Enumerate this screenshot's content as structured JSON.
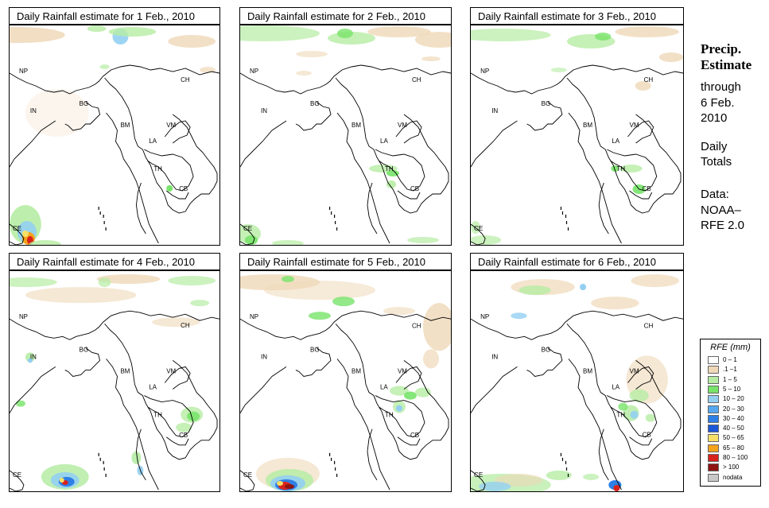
{
  "panels": [
    {
      "title": "Daily Rainfall estimate for  1 Feb., 2010"
    },
    {
      "title": "Daily Rainfall estimate for  2 Feb., 2010"
    },
    {
      "title": "Daily Rainfall estimate for  3 Feb., 2010"
    },
    {
      "title": "Daily Rainfall estimate for  4 Feb., 2010"
    },
    {
      "title": "Daily Rainfall estimate for  5 Feb., 2010"
    },
    {
      "title": "Daily Rainfall estimate for  6 Feb., 2010"
    }
  ],
  "country_labels": [
    "NP",
    "CH",
    "IN",
    "BG",
    "BM",
    "VM",
    "LA",
    "TH",
    "CB",
    "CE"
  ],
  "sidebar": {
    "heading_line1": "Precip.",
    "heading_line2": "Estimate",
    "through": "through",
    "date_line1": "6 Feb.",
    "date_line2": "2010",
    "daily_line1": "Daily",
    "daily_line2": "Totals",
    "data_line1": "Data:",
    "data_line2": "NOAA–",
    "data_line3": "RFE 2.0"
  },
  "legend": {
    "title": "RFE (mm)",
    "items": [
      {
        "label": "0 – 1",
        "color": "#ffffff"
      },
      {
        "label": ".1 –1",
        "color": "#efd8b8"
      },
      {
        "label": "1 – 5",
        "color": "#b6eca4"
      },
      {
        "label": "5 – 10",
        "color": "#78e36a"
      },
      {
        "label": "10 – 20",
        "color": "#94cff2"
      },
      {
        "label": "20 – 30",
        "color": "#55a8f0"
      },
      {
        "label": "30 – 40",
        "color": "#2e7fe6"
      },
      {
        "label": "40 – 50",
        "color": "#1b56d8"
      },
      {
        "label": "50 – 65",
        "color": "#f8e067"
      },
      {
        "label": "65 – 80",
        "color": "#f5a31b"
      },
      {
        "label": "80 – 100",
        "color": "#d8231c"
      },
      {
        "label": "> 100",
        "color": "#8e1411"
      },
      {
        "label": "nodata",
        "color": "#c8c8c8"
      }
    ]
  }
}
